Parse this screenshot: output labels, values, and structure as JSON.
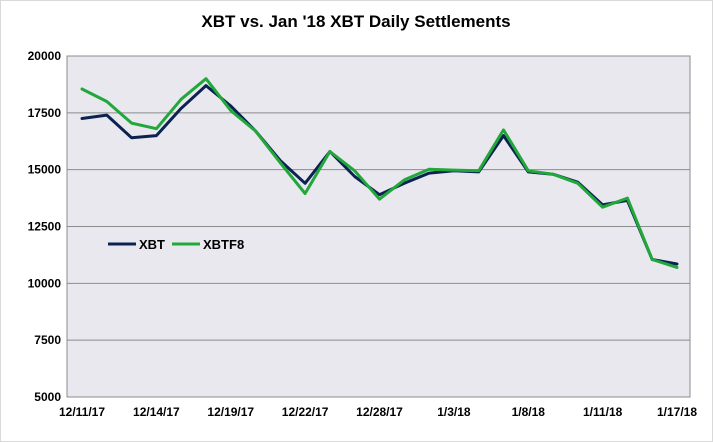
{
  "chart_data": {
    "type": "line",
    "title": "XBT vs. Jan '18 XBT Daily Settlements",
    "xlabel": "",
    "ylabel": "",
    "ylim": [
      5000,
      20000
    ],
    "yticks": [
      5000,
      7500,
      10000,
      12500,
      15000,
      17500,
      20000
    ],
    "x_tick_labels": [
      "12/11/17",
      "12/14/17",
      "12/19/17",
      "12/22/17",
      "12/28/17",
      "1/3/18",
      "1/8/18",
      "1/11/18",
      "1/17/18"
    ],
    "x_tick_indices": [
      0,
      3,
      6,
      9,
      12,
      15,
      18,
      21,
      24
    ],
    "grid": "horizontal",
    "legend_position": "center-left",
    "series": [
      {
        "name": "XBT",
        "color": "#0b2351",
        "values": [
          17250,
          17400,
          16400,
          16500,
          17700,
          18700,
          17800,
          16700,
          15400,
          14400,
          15800,
          14700,
          13900,
          14400,
          14850,
          14950,
          14900,
          16500,
          14900,
          14800,
          14450,
          13450,
          13650,
          11050,
          10850
        ]
      },
      {
        "name": "XBTF8",
        "color": "#22a83a",
        "values": [
          18550,
          18000,
          17050,
          16800,
          18100,
          19000,
          17600,
          16700,
          15300,
          13950,
          15800,
          14950,
          13700,
          14550,
          15020,
          14980,
          14950,
          16750,
          14950,
          14800,
          14400,
          13350,
          13750,
          11050,
          10700
        ]
      }
    ]
  }
}
